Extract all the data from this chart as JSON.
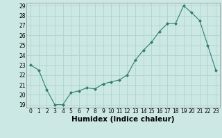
{
  "x": [
    0,
    1,
    2,
    3,
    4,
    5,
    6,
    7,
    8,
    9,
    10,
    11,
    12,
    13,
    14,
    15,
    16,
    17,
    18,
    19,
    20,
    21,
    22,
    23
  ],
  "y": [
    23.0,
    22.5,
    20.5,
    19.0,
    19.0,
    20.2,
    20.4,
    20.7,
    20.6,
    21.1,
    21.3,
    21.5,
    22.0,
    23.5,
    24.5,
    25.3,
    26.4,
    27.2,
    27.2,
    29.0,
    28.3,
    27.5,
    25.0,
    22.5
  ],
  "xlabel": "Humidex (Indice chaleur)",
  "ylabel": "",
  "title": "",
  "xlim": [
    -0.5,
    23.5
  ],
  "ylim": [
    18.7,
    29.3
  ],
  "yticks": [
    19,
    20,
    21,
    22,
    23,
    24,
    25,
    26,
    27,
    28,
    29
  ],
  "xticks": [
    0,
    1,
    2,
    3,
    4,
    5,
    6,
    7,
    8,
    9,
    10,
    11,
    12,
    13,
    14,
    15,
    16,
    17,
    18,
    19,
    20,
    21,
    22,
    23
  ],
  "line_color": "#2e7d6e",
  "marker_color": "#2e7d6e",
  "bg_color": "#cce8e4",
  "grid_color": "#aacfca",
  "tick_label_fontsize": 5.5,
  "xlabel_fontsize": 7.5
}
